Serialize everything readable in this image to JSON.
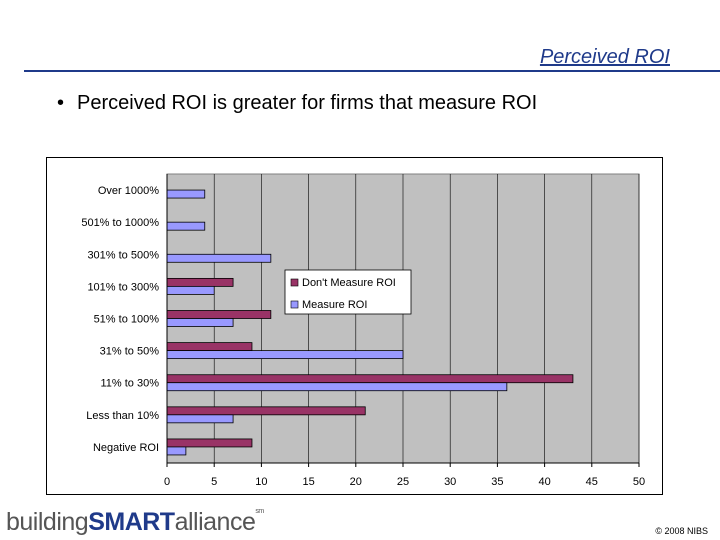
{
  "slide": {
    "title": "Perceived ROI",
    "bullet": "Perceived ROI is greater for firms that measure ROI",
    "logo_prefix": "building",
    "logo_smart": "SMART",
    "logo_suffix": "alliance",
    "logo_sup": "sm",
    "copyright": "© 2008 NIBS"
  },
  "chart_data": {
    "type": "bar",
    "orientation": "horizontal",
    "categories": [
      "Over 1000%",
      "501% to 1000%",
      "301% to 500%",
      "101% to 300%",
      "51% to 100%",
      "31% to 50%",
      "11% to 30%",
      "Less than 10%",
      "Negative ROI"
    ],
    "series": [
      {
        "name": "Don't Measure ROI",
        "color": "#993366",
        "values": [
          0,
          0,
          0,
          7,
          11,
          9,
          43,
          21,
          9
        ]
      },
      {
        "name": "Measure ROI",
        "color": "#9999ff",
        "values": [
          4,
          4,
          11,
          5,
          7,
          25,
          36,
          7,
          2
        ]
      }
    ],
    "xlim": [
      0,
      50
    ],
    "xticks": [
      0,
      5,
      10,
      15,
      20,
      25,
      30,
      35,
      40,
      45,
      50
    ],
    "plot_background": "#c0c0c0",
    "legend_position": "inside-right"
  }
}
